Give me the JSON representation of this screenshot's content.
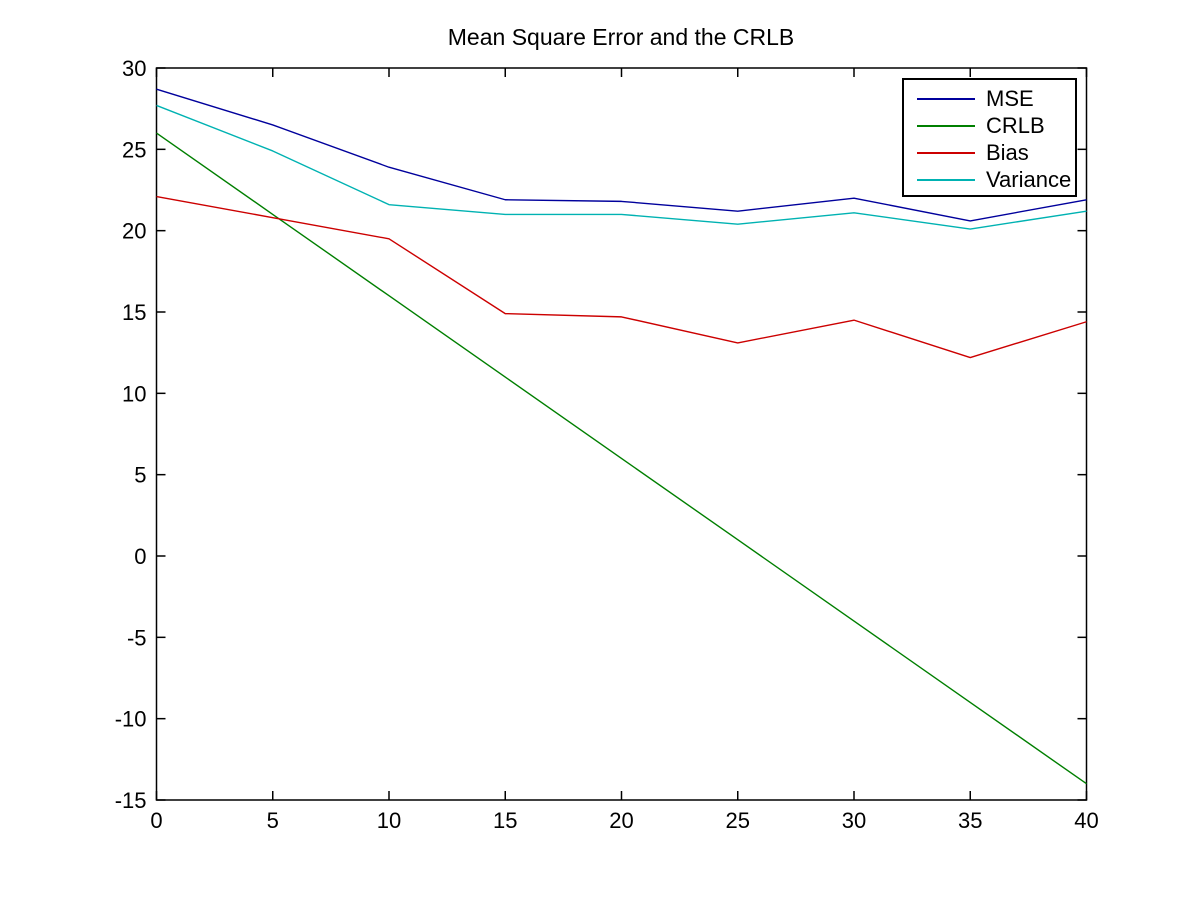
{
  "window": {
    "background": "#ffffff",
    "axis_color": "#000000",
    "text_color": "#000000"
  },
  "chart_data": {
    "type": "line",
    "title": "Mean Square Error and the CRLB",
    "xlabel": "",
    "ylabel": "",
    "xlim": [
      0,
      40
    ],
    "ylim": [
      -15,
      30
    ],
    "xticks": [
      0,
      5,
      10,
      15,
      20,
      25,
      30,
      35,
      40
    ],
    "yticks": [
      -15,
      -10,
      -5,
      0,
      5,
      10,
      15,
      20,
      25,
      30
    ],
    "grid": false,
    "legend_position": "top-right",
    "x": [
      0,
      5,
      10,
      15,
      20,
      25,
      30,
      35,
      40
    ],
    "series": [
      {
        "name": "MSE",
        "color": "#00009c",
        "values": [
          28.7,
          26.5,
          23.9,
          21.9,
          21.8,
          21.2,
          22.0,
          20.6,
          21.9
        ]
      },
      {
        "name": "CRLB",
        "color": "#007f00",
        "values": [
          26.0,
          21.0,
          16.0,
          11.0,
          6.0,
          1.0,
          -4.0,
          -9.0,
          -14.0
        ]
      },
      {
        "name": "Bias",
        "color": "#cc0000",
        "values": [
          22.1,
          20.8,
          19.5,
          14.9,
          14.7,
          13.1,
          14.5,
          12.2,
          14.4
        ]
      },
      {
        "name": "Variance",
        "color": "#00b2b2",
        "values": [
          27.7,
          24.9,
          21.6,
          21.0,
          21.0,
          20.4,
          21.1,
          20.1,
          21.2
        ]
      }
    ]
  }
}
